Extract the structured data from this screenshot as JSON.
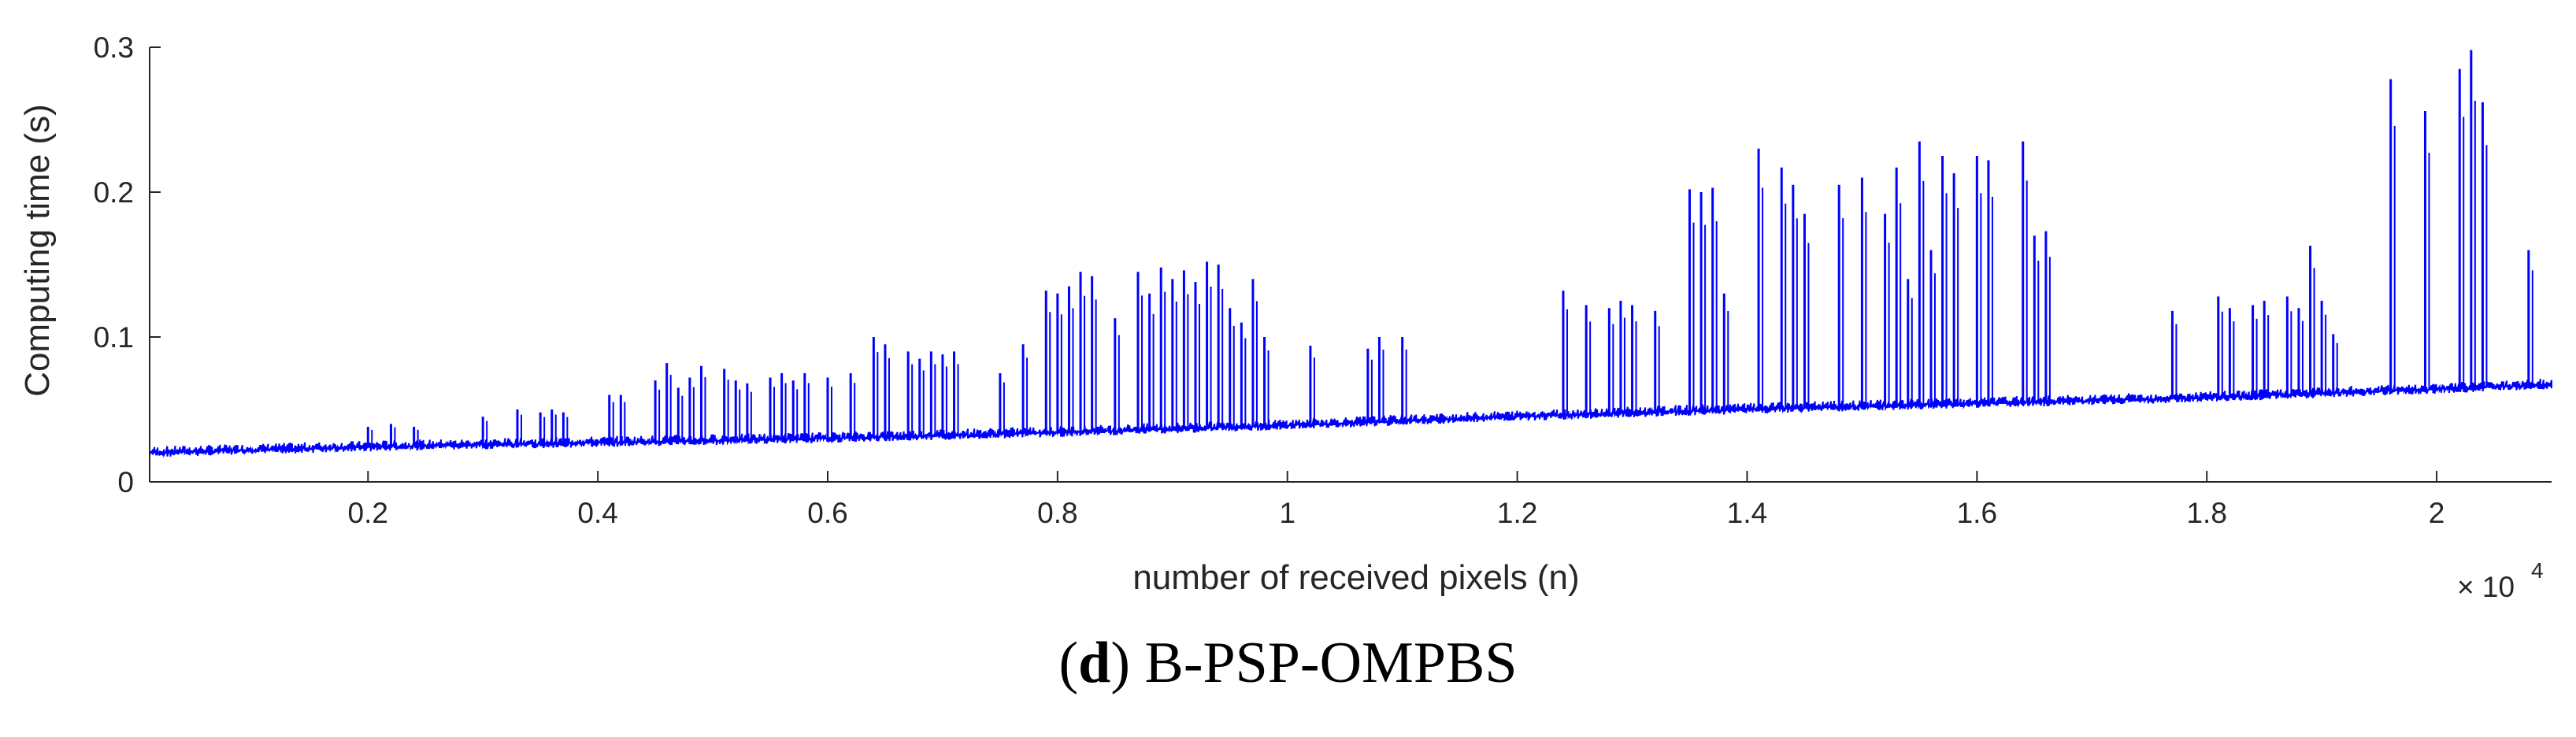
{
  "chart_data": {
    "type": "line",
    "title": "",
    "xlabel": "number of received pixels (n)",
    "ylabel": "Computing time (s)",
    "x_exponent": {
      "base": "× 10",
      "power": "4"
    },
    "xlim": [
      0.01,
      2.1
    ],
    "ylim": [
      0,
      0.3
    ],
    "xticks": [
      0.2,
      0.4,
      0.6,
      0.8,
      1,
      1.2,
      1.4,
      1.6,
      1.8,
      2
    ],
    "xtick_labels": [
      "0.2",
      "0.4",
      "0.6",
      "0.8",
      "1",
      "1.2",
      "1.4",
      "1.6",
      "1.8",
      "2"
    ],
    "yticks": [
      0,
      0.1,
      0.2,
      0.3
    ],
    "ytick_labels": [
      "0",
      "0.1",
      "0.2",
      "0.3"
    ],
    "grid": false,
    "series": [
      {
        "name": "B-PSP-OMPBS",
        "color": "#0000ff",
        "baseline": {
          "x": [
            0.01,
            0.2,
            0.4,
            0.6,
            0.8,
            1.0,
            1.2,
            1.4,
            1.6,
            1.8,
            2.0,
            2.1
          ],
          "y": [
            0.02,
            0.024,
            0.027,
            0.03,
            0.034,
            0.039,
            0.045,
            0.05,
            0.054,
            0.058,
            0.064,
            0.067
          ]
        },
        "spikes": {
          "x": [
            0.2,
            0.22,
            0.24,
            0.3,
            0.33,
            0.35,
            0.36,
            0.37,
            0.41,
            0.42,
            0.45,
            0.46,
            0.47,
            0.48,
            0.49,
            0.51,
            0.52,
            0.53,
            0.55,
            0.56,
            0.57,
            0.58,
            0.6,
            0.62,
            0.64,
            0.65,
            0.67,
            0.68,
            0.69,
            0.7,
            0.71,
            0.75,
            0.77,
            0.79,
            0.8,
            0.81,
            0.82,
            0.83,
            0.85,
            0.87,
            0.88,
            0.89,
            0.9,
            0.91,
            0.92,
            0.93,
            0.94,
            0.95,
            0.96,
            0.97,
            0.98,
            1.02,
            1.07,
            1.08,
            1.1,
            1.24,
            1.26,
            1.28,
            1.29,
            1.3,
            1.32,
            1.35,
            1.36,
            1.37,
            1.38,
            1.41,
            1.43,
            1.44,
            1.45,
            1.48,
            1.5,
            1.52,
            1.53,
            1.54,
            1.55,
            1.56,
            1.57,
            1.58,
            1.6,
            1.61,
            1.64,
            1.65,
            1.66,
            1.77,
            1.81,
            1.82,
            1.84,
            1.85,
            1.87,
            1.88,
            1.89,
            1.9,
            1.91,
            1.96,
            1.99,
            2.02,
            2.03,
            2.04,
            2.08
          ],
          "y": [
            0.038,
            0.04,
            0.038,
            0.045,
            0.05,
            0.048,
            0.05,
            0.048,
            0.06,
            0.06,
            0.07,
            0.082,
            0.065,
            0.072,
            0.08,
            0.078,
            0.07,
            0.068,
            0.072,
            0.075,
            0.07,
            0.075,
            0.072,
            0.075,
            0.1,
            0.095,
            0.09,
            0.085,
            0.09,
            0.088,
            0.09,
            0.075,
            0.095,
            0.132,
            0.13,
            0.135,
            0.145,
            0.142,
            0.113,
            0.145,
            0.13,
            0.148,
            0.14,
            0.146,
            0.138,
            0.152,
            0.15,
            0.12,
            0.11,
            0.14,
            0.1,
            0.094,
            0.092,
            0.1,
            0.1,
            0.132,
            0.122,
            0.12,
            0.125,
            0.122,
            0.118,
            0.202,
            0.2,
            0.203,
            0.13,
            0.23,
            0.217,
            0.205,
            0.185,
            0.205,
            0.21,
            0.185,
            0.217,
            0.14,
            0.235,
            0.16,
            0.225,
            0.213,
            0.225,
            0.222,
            0.235,
            0.17,
            0.173,
            0.118,
            0.128,
            0.12,
            0.122,
            0.125,
            0.128,
            0.12,
            0.163,
            0.125,
            0.102,
            0.278,
            0.256,
            0.285,
            0.298,
            0.262,
            0.16
          ]
        }
      }
    ]
  },
  "caption": {
    "open_paren": "(",
    "letter": "d",
    "close_paren": ")",
    "text": " B-PSP-OMPBS"
  }
}
